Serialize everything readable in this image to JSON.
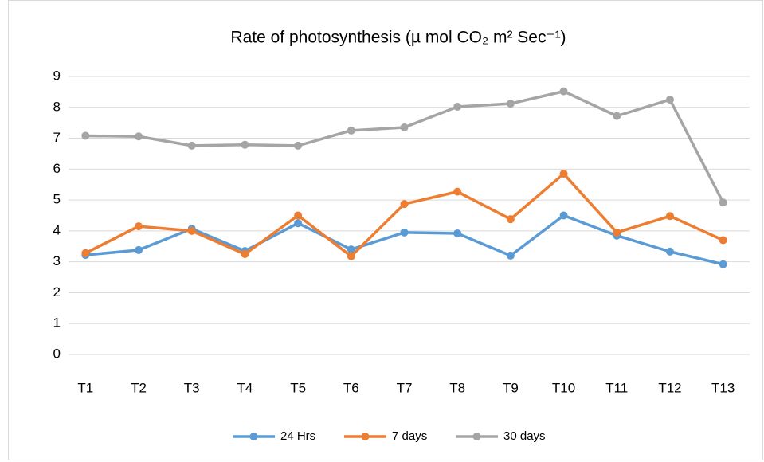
{
  "chart_data": {
    "type": "line",
    "title": "Rate of photosynthesis (µ mol CO₂ m² Sec⁻¹)",
    "categories": [
      "T1",
      "T2",
      "T3",
      "T4",
      "T5",
      "T6",
      "T7",
      "T8",
      "T9",
      "T10",
      "T11",
      "T12",
      "T13"
    ],
    "series": [
      {
        "name": "24 Hrs",
        "color": "#5b9bd5",
        "values": [
          3.22,
          3.38,
          4.07,
          3.35,
          4.25,
          3.4,
          3.95,
          3.92,
          3.2,
          4.5,
          3.85,
          3.33,
          2.92
        ]
      },
      {
        "name": "7 days",
        "color": "#ed7d31",
        "values": [
          3.28,
          4.15,
          4.0,
          3.25,
          4.5,
          3.18,
          4.87,
          5.27,
          4.38,
          5.85,
          3.95,
          4.48,
          3.7
        ]
      },
      {
        "name": "30 days",
        "color": "#a5a5a5",
        "values": [
          7.08,
          7.06,
          6.76,
          6.79,
          6.76,
          7.25,
          7.35,
          8.02,
          8.12,
          8.52,
          7.72,
          8.25,
          4.92
        ]
      }
    ],
    "ylim": [
      0,
      9
    ],
    "yticks": [
      0,
      1,
      2,
      3,
      4,
      5,
      6,
      7,
      8,
      9
    ],
    "grid": true,
    "legend": "bottom"
  }
}
